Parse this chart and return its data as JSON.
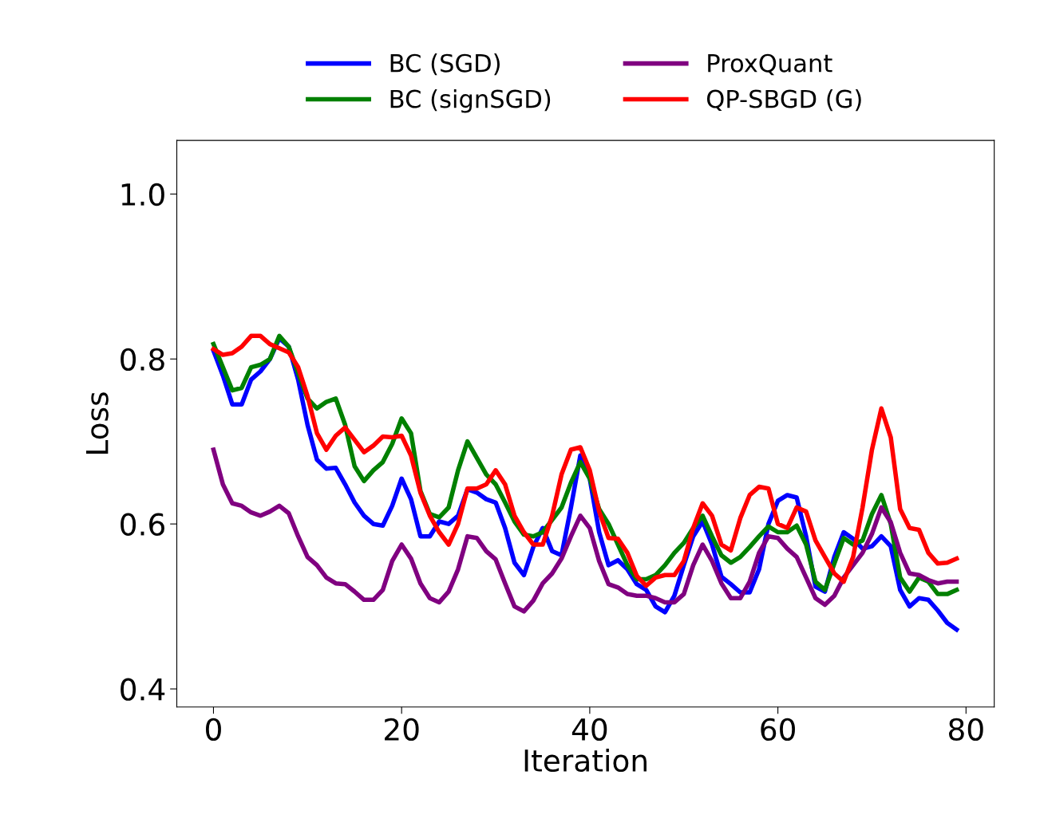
{
  "chart_data": {
    "type": "line",
    "xlabel": "Iteration",
    "ylabel": "Loss",
    "x": [
      0,
      1,
      2,
      3,
      4,
      5,
      6,
      7,
      8,
      9,
      10,
      11,
      12,
      13,
      14,
      15,
      16,
      17,
      18,
      19,
      20,
      21,
      22,
      23,
      24,
      25,
      26,
      27,
      28,
      29,
      30,
      31,
      32,
      33,
      34,
      35,
      36,
      37,
      38,
      39,
      40,
      41,
      42,
      43,
      44,
      45,
      46,
      47,
      48,
      49,
      50,
      51,
      52,
      53,
      54,
      55,
      56,
      57,
      58,
      59,
      60,
      61,
      62,
      63,
      64,
      65,
      66,
      67,
      68,
      69,
      70,
      71,
      72,
      73,
      74,
      75,
      76,
      77,
      78,
      79
    ],
    "xlim": [
      -3.9,
      83.0
    ],
    "xticks": [
      0,
      20,
      40,
      60,
      80
    ],
    "ylim": [
      0.378,
      1.065
    ],
    "yticks": [
      {
        "value": 0.4,
        "label": "0.4"
      },
      {
        "value": 0.6,
        "label": "0.6"
      },
      {
        "value": 0.8,
        "label": "0.8"
      },
      {
        "value": 1.0,
        "label": "1.0"
      }
    ],
    "grid": false,
    "legend": "top",
    "marker": "none",
    "line_style": "solid",
    "series": [
      {
        "name": "BC (SGD)",
        "color": "#0000ff",
        "values": [
          0.81,
          0.78,
          0.745,
          0.745,
          0.775,
          0.785,
          0.8,
          0.825,
          0.815,
          0.775,
          0.72,
          0.678,
          0.667,
          0.668,
          0.648,
          0.626,
          0.61,
          0.6,
          0.598,
          0.622,
          0.655,
          0.63,
          0.585,
          0.585,
          0.603,
          0.6,
          0.61,
          0.642,
          0.638,
          0.63,
          0.626,
          0.595,
          0.553,
          0.538,
          0.572,
          0.595,
          0.567,
          0.562,
          0.62,
          0.683,
          0.655,
          0.59,
          0.55,
          0.556,
          0.545,
          0.527,
          0.52,
          0.5,
          0.493,
          0.513,
          0.55,
          0.585,
          0.603,
          0.575,
          0.536,
          0.527,
          0.517,
          0.517,
          0.545,
          0.6,
          0.628,
          0.635,
          0.632,
          0.585,
          0.524,
          0.518,
          0.56,
          0.59,
          0.582,
          0.57,
          0.573,
          0.585,
          0.573,
          0.52,
          0.5,
          0.51,
          0.508,
          0.495,
          0.48,
          0.472
        ]
      },
      {
        "name": "BC (signSGD)",
        "color": "#008000",
        "values": [
          0.818,
          0.79,
          0.762,
          0.765,
          0.79,
          0.793,
          0.8,
          0.828,
          0.815,
          0.783,
          0.752,
          0.74,
          0.748,
          0.752,
          0.72,
          0.67,
          0.652,
          0.665,
          0.675,
          0.697,
          0.728,
          0.71,
          0.64,
          0.612,
          0.608,
          0.62,
          0.665,
          0.7,
          0.68,
          0.66,
          0.648,
          0.626,
          0.603,
          0.587,
          0.585,
          0.59,
          0.605,
          0.62,
          0.65,
          0.675,
          0.655,
          0.618,
          0.6,
          0.575,
          0.55,
          0.533,
          0.533,
          0.538,
          0.55,
          0.565,
          0.577,
          0.595,
          0.61,
          0.585,
          0.562,
          0.553,
          0.56,
          0.572,
          0.585,
          0.597,
          0.59,
          0.59,
          0.598,
          0.575,
          0.53,
          0.52,
          0.552,
          0.583,
          0.575,
          0.58,
          0.612,
          0.635,
          0.6,
          0.535,
          0.518,
          0.535,
          0.53,
          0.515,
          0.515,
          0.52
        ]
      },
      {
        "name": "ProxQuant",
        "color": "#800080",
        "values": [
          0.69,
          0.648,
          0.625,
          0.622,
          0.614,
          0.61,
          0.615,
          0.622,
          0.613,
          0.585,
          0.56,
          0.55,
          0.535,
          0.528,
          0.527,
          0.518,
          0.508,
          0.508,
          0.52,
          0.555,
          0.575,
          0.558,
          0.528,
          0.51,
          0.505,
          0.518,
          0.545,
          0.585,
          0.583,
          0.567,
          0.557,
          0.528,
          0.5,
          0.494,
          0.507,
          0.528,
          0.54,
          0.558,
          0.585,
          0.61,
          0.595,
          0.555,
          0.527,
          0.523,
          0.515,
          0.513,
          0.513,
          0.51,
          0.505,
          0.505,
          0.515,
          0.55,
          0.575,
          0.555,
          0.528,
          0.51,
          0.51,
          0.53,
          0.565,
          0.585,
          0.583,
          0.57,
          0.56,
          0.535,
          0.51,
          0.502,
          0.513,
          0.535,
          0.55,
          0.565,
          0.588,
          0.62,
          0.602,
          0.565,
          0.54,
          0.538,
          0.532,
          0.528,
          0.53,
          0.53
        ]
      },
      {
        "name": "QP-SBGD (G)",
        "color": "#ff0000",
        "values": [
          0.812,
          0.805,
          0.807,
          0.815,
          0.828,
          0.828,
          0.818,
          0.813,
          0.808,
          0.79,
          0.755,
          0.71,
          0.69,
          0.707,
          0.717,
          0.702,
          0.687,
          0.695,
          0.706,
          0.705,
          0.707,
          0.683,
          0.638,
          0.61,
          0.59,
          0.575,
          0.6,
          0.643,
          0.643,
          0.648,
          0.665,
          0.648,
          0.61,
          0.59,
          0.575,
          0.575,
          0.61,
          0.66,
          0.69,
          0.693,
          0.665,
          0.615,
          0.583,
          0.582,
          0.565,
          0.537,
          0.525,
          0.535,
          0.538,
          0.538,
          0.555,
          0.595,
          0.625,
          0.61,
          0.575,
          0.568,
          0.607,
          0.635,
          0.645,
          0.643,
          0.6,
          0.595,
          0.62,
          0.615,
          0.58,
          0.56,
          0.54,
          0.53,
          0.56,
          0.62,
          0.69,
          0.74,
          0.705,
          0.618,
          0.595,
          0.593,
          0.565,
          0.552,
          0.553,
          0.558
        ]
      }
    ]
  }
}
